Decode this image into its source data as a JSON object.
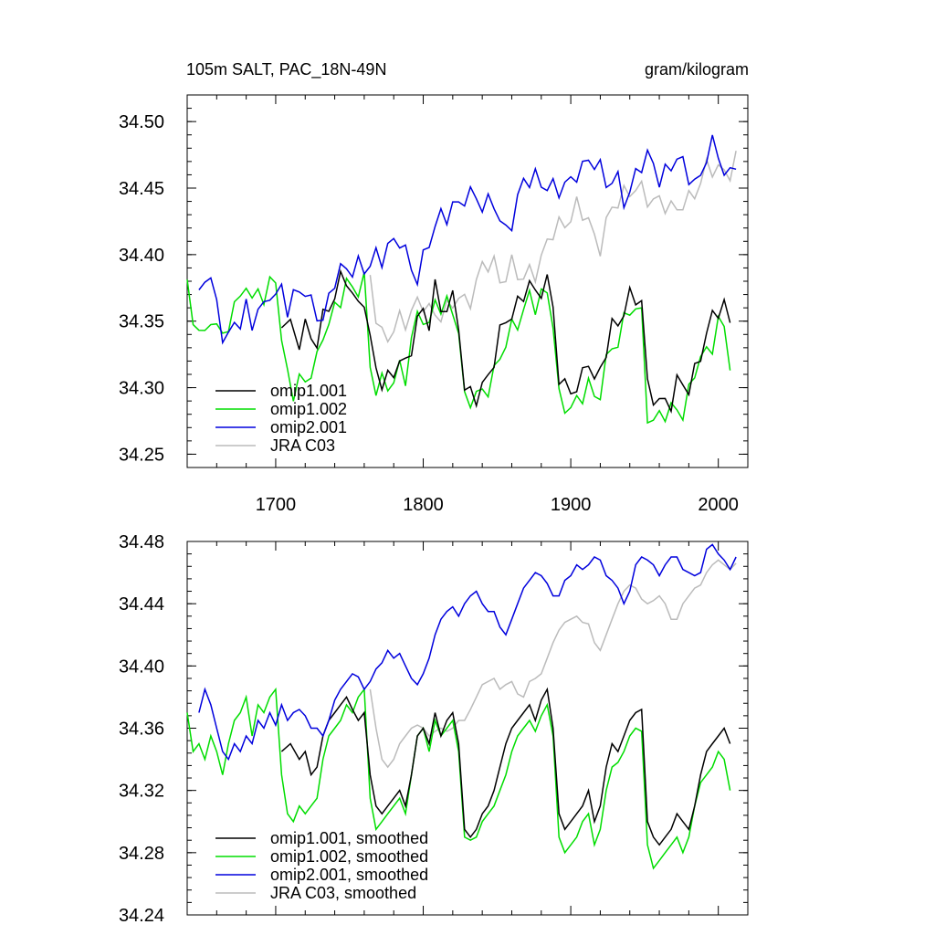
{
  "chart_data": [
    {
      "type": "line",
      "title_left": "105m SALT, PAC_18N-49N",
      "title_right": "gram/kilogram",
      "xlim": [
        1640,
        2020
      ],
      "ylim": [
        34.24,
        34.52
      ],
      "xticks": [
        1700,
        1800,
        1900,
        2000
      ],
      "yticks": [
        34.25,
        34.3,
        34.35,
        34.4,
        34.45,
        34.5
      ],
      "ytick_labels": [
        "34.25",
        "34.30",
        "34.35",
        "34.40",
        "34.45",
        "34.50"
      ],
      "legend_position": "bottom-left",
      "grid": false,
      "series": [
        {
          "name": "omip1.001",
          "color": "#000000"
        },
        {
          "name": "omip1.002",
          "color": "#00dd00"
        },
        {
          "name": "omip2.001",
          "color": "#0000dd"
        },
        {
          "name": "JRA C03",
          "color": "#bbbbbb"
        }
      ]
    },
    {
      "type": "line",
      "xlim": [
        1640,
        2020
      ],
      "ylim": [
        34.24,
        34.48
      ],
      "xticks": [
        1700,
        1800,
        1900,
        2000
      ],
      "yticks": [
        34.24,
        34.28,
        34.32,
        34.36,
        34.4,
        34.44,
        34.48
      ],
      "ytick_labels": [
        "34.24",
        "34.28",
        "34.32",
        "34.36",
        "34.40",
        "34.44",
        "34.48"
      ],
      "legend_position": "bottom-left",
      "grid": false,
      "series": [
        {
          "name": "omip1.001, smoothed",
          "color": "#000000"
        },
        {
          "name": "omip1.002, smoothed",
          "color": "#00dd00"
        },
        {
          "name": "omip2.001, smoothed",
          "color": "#0000dd"
        },
        {
          "name": "JRA C03, smoothed",
          "color": "#bbbbbb"
        }
      ]
    }
  ],
  "series_data": {
    "omip1.001": {
      "x": [
        1704,
        1710,
        1716,
        1720,
        1724,
        1728,
        1732,
        1736,
        1740,
        1744,
        1748,
        1752,
        1756,
        1760,
        1764,
        1768,
        1772,
        1776,
        1780,
        1784,
        1788,
        1792,
        1796,
        1800,
        1804,
        1808,
        1812,
        1816,
        1820,
        1824,
        1828,
        1832,
        1836,
        1840,
        1844,
        1848,
        1852,
        1856,
        1860,
        1864,
        1868,
        1872,
        1876,
        1880,
        1884,
        1888,
        1892,
        1896,
        1900,
        1904,
        1908,
        1912,
        1916,
        1920,
        1924,
        1928,
        1932,
        1936,
        1940,
        1944,
        1948,
        1952,
        1956,
        1960,
        1964,
        1968,
        1972,
        1976,
        1980,
        1984,
        1988,
        1992,
        1996,
        2000,
        2004,
        2008
      ],
      "y": [
        34.345,
        34.35,
        34.34,
        34.345,
        34.33,
        34.335,
        34.355,
        34.365,
        34.37,
        34.375,
        34.38,
        34.372,
        34.365,
        34.37,
        34.33,
        34.31,
        34.305,
        34.31,
        34.315,
        34.32,
        34.31,
        34.33,
        34.355,
        34.36,
        34.35,
        34.37,
        34.355,
        34.365,
        34.37,
        34.35,
        34.295,
        34.29,
        34.295,
        34.305,
        34.31,
        34.32,
        34.335,
        34.35,
        34.36,
        34.365,
        34.37,
        34.375,
        34.365,
        34.378,
        34.385,
        34.36,
        34.305,
        34.295,
        34.3,
        34.305,
        34.31,
        34.32,
        34.3,
        34.31,
        34.335,
        34.35,
        34.345,
        34.355,
        34.365,
        34.37,
        34.372,
        34.3,
        34.29,
        34.285,
        34.29,
        34.295,
        34.305,
        34.3,
        34.295,
        34.31,
        34.33,
        34.345,
        34.35,
        34.355,
        34.36,
        34.35
      ]
    },
    "omip1.002": {
      "x": [
        1640,
        1644,
        1648,
        1652,
        1656,
        1660,
        1664,
        1668,
        1672,
        1676,
        1680,
        1684,
        1688,
        1692,
        1696,
        1700,
        1704,
        1708,
        1712,
        1716,
        1720,
        1724,
        1728,
        1732,
        1736,
        1740,
        1744,
        1748,
        1752,
        1756,
        1760,
        1764,
        1768,
        1772,
        1776,
        1780,
        1784,
        1788,
        1792,
        1796,
        1800,
        1804,
        1808,
        1812,
        1816,
        1820,
        1824,
        1828,
        1832,
        1836,
        1840,
        1844,
        1848,
        1852,
        1856,
        1860,
        1864,
        1868,
        1872,
        1876,
        1880,
        1884,
        1888,
        1892,
        1896,
        1900,
        1904,
        1908,
        1912,
        1916,
        1920,
        1924,
        1928,
        1932,
        1936,
        1940,
        1944,
        1948,
        1952,
        1956,
        1960,
        1964,
        1968,
        1972,
        1976,
        1980,
        1984,
        1988,
        1992,
        1996,
        2000,
        2004,
        2008
      ],
      "y": [
        34.37,
        34.345,
        34.35,
        34.34,
        34.355,
        34.345,
        34.33,
        34.35,
        34.365,
        34.37,
        34.38,
        34.355,
        34.375,
        34.37,
        34.38,
        34.385,
        34.33,
        34.305,
        34.3,
        34.31,
        34.305,
        34.31,
        34.315,
        34.34,
        34.355,
        34.36,
        34.365,
        34.375,
        34.37,
        34.38,
        34.385,
        34.315,
        34.295,
        34.3,
        34.305,
        34.31,
        34.315,
        34.305,
        34.33,
        34.355,
        34.36,
        34.345,
        34.365,
        34.355,
        34.36,
        34.365,
        34.345,
        34.29,
        34.288,
        34.29,
        34.3,
        34.305,
        34.31,
        34.32,
        34.33,
        34.345,
        34.355,
        34.36,
        34.365,
        34.358,
        34.368,
        34.375,
        34.355,
        34.29,
        34.28,
        34.285,
        34.29,
        34.3,
        34.305,
        34.285,
        34.295,
        34.32,
        34.335,
        34.338,
        34.345,
        34.355,
        34.36,
        34.358,
        34.285,
        34.27,
        34.275,
        34.28,
        34.285,
        34.29,
        34.28,
        34.29,
        34.31,
        34.325,
        34.33,
        34.335,
        34.345,
        34.34,
        34.32
      ]
    },
    "omip2.001": {
      "x": [
        1648,
        1652,
        1656,
        1660,
        1664,
        1668,
        1672,
        1676,
        1680,
        1684,
        1688,
        1692,
        1696,
        1700,
        1704,
        1708,
        1712,
        1716,
        1720,
        1724,
        1728,
        1732,
        1736,
        1740,
        1744,
        1748,
        1752,
        1756,
        1760,
        1764,
        1768,
        1772,
        1776,
        1780,
        1784,
        1788,
        1792,
        1796,
        1800,
        1804,
        1808,
        1812,
        1816,
        1820,
        1824,
        1828,
        1832,
        1836,
        1840,
        1844,
        1848,
        1852,
        1856,
        1860,
        1864,
        1868,
        1872,
        1876,
        1880,
        1884,
        1888,
        1892,
        1896,
        1900,
        1904,
        1908,
        1912,
        1916,
        1920,
        1924,
        1928,
        1932,
        1936,
        1940,
        1944,
        1948,
        1952,
        1956,
        1960,
        1964,
        1968,
        1972,
        1976,
        1980,
        1984,
        1988,
        1992,
        1996,
        2000,
        2004,
        2008,
        2012
      ],
      "y": [
        34.37,
        34.385,
        34.375,
        34.36,
        34.345,
        34.34,
        34.35,
        34.345,
        34.355,
        34.35,
        34.365,
        34.36,
        34.37,
        34.362,
        34.375,
        34.365,
        34.37,
        34.372,
        34.368,
        34.36,
        34.36,
        34.355,
        34.365,
        34.378,
        34.385,
        34.39,
        34.395,
        34.393,
        34.385,
        34.39,
        34.398,
        34.402,
        34.41,
        34.405,
        34.408,
        34.4,
        34.392,
        34.388,
        34.395,
        34.405,
        34.42,
        34.43,
        34.435,
        34.438,
        34.432,
        34.44,
        34.445,
        34.448,
        34.44,
        34.435,
        34.435,
        34.425,
        34.42,
        34.43,
        34.44,
        34.45,
        34.455,
        34.46,
        34.458,
        34.453,
        34.445,
        34.445,
        34.455,
        34.458,
        34.465,
        34.462,
        34.465,
        34.47,
        34.468,
        34.458,
        34.455,
        34.45,
        34.44,
        34.448,
        34.465,
        34.47,
        34.468,
        34.465,
        34.458,
        34.465,
        34.47,
        34.47,
        34.462,
        34.46,
        34.458,
        34.46,
        34.475,
        34.478,
        34.472,
        34.468,
        34.462,
        34.47
      ]
    },
    "JRA C03": {
      "x": [
        1764,
        1768,
        1772,
        1776,
        1780,
        1784,
        1788,
        1792,
        1796,
        1800,
        1804,
        1808,
        1812,
        1816,
        1820,
        1824,
        1828,
        1832,
        1836,
        1840,
        1844,
        1848,
        1852,
        1856,
        1860,
        1864,
        1868,
        1872,
        1876,
        1880,
        1884,
        1888,
        1892,
        1896,
        1900,
        1904,
        1908,
        1912,
        1916,
        1920,
        1924,
        1928,
        1932,
        1936,
        1940,
        1944,
        1948,
        1952,
        1956,
        1960,
        1964,
        1968,
        1972,
        1976,
        1980,
        1984,
        1988,
        1992,
        1996,
        2000,
        2004,
        2008,
        2012
      ],
      "y": [
        34.385,
        34.36,
        34.34,
        34.335,
        34.34,
        34.35,
        34.355,
        34.36,
        34.362,
        34.36,
        34.355,
        34.358,
        34.36,
        34.358,
        34.36,
        34.365,
        34.365,
        34.372,
        34.38,
        34.388,
        34.39,
        34.392,
        34.385,
        34.388,
        34.39,
        34.382,
        34.38,
        34.39,
        34.392,
        34.395,
        34.405,
        34.415,
        34.423,
        34.428,
        34.43,
        34.432,
        34.428,
        34.427,
        34.415,
        34.41,
        34.42,
        34.43,
        34.44,
        34.448,
        34.452,
        34.45,
        34.443,
        34.44,
        34.442,
        34.445,
        34.44,
        34.43,
        34.43,
        34.44,
        34.445,
        34.45,
        34.452,
        34.46,
        34.465,
        34.468,
        34.465,
        34.462,
        34.466
      ]
    }
  }
}
